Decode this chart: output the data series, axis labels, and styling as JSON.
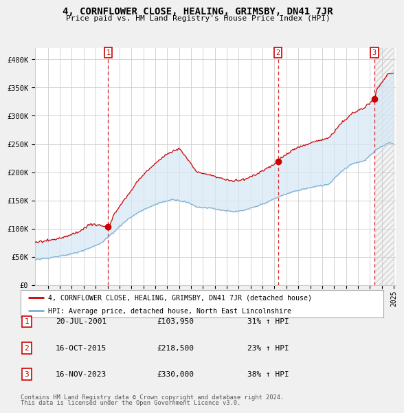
{
  "title": "4, CORNFLOWER CLOSE, HEALING, GRIMSBY, DN41 7JR",
  "subtitle": "Price paid vs. HM Land Registry's House Price Index (HPI)",
  "ylim": [
    0,
    420000
  ],
  "yticks": [
    0,
    50000,
    100000,
    150000,
    200000,
    250000,
    300000,
    350000,
    400000
  ],
  "ytick_labels": [
    "£0",
    "£50K",
    "£100K",
    "£150K",
    "£200K",
    "£250K",
    "£300K",
    "£350K",
    "£400K"
  ],
  "red_line_color": "#cc0000",
  "blue_line_color": "#7ab0d4",
  "fill_color": "#d6e8f5",
  "hatch_color": "#c8c8c8",
  "grid_color": "#cccccc",
  "background_color": "#f0f0f0",
  "plot_bg_color": "#ffffff",
  "sale_prices": [
    103950,
    218500,
    330000
  ],
  "sale_labels": [
    "1",
    "2",
    "3"
  ],
  "sale_pct": [
    "31% ↑ HPI",
    "23% ↑ HPI",
    "38% ↑ HPI"
  ],
  "sale_date_strs": [
    "20-JUL-2001",
    "16-OCT-2015",
    "16-NOV-2023"
  ],
  "legend_red": "4, CORNFLOWER CLOSE, HEALING, GRIMSBY, DN41 7JR (detached house)",
  "legend_blue": "HPI: Average price, detached house, North East Lincolnshire",
  "footer1": "Contains HM Land Registry data © Crown copyright and database right 2024.",
  "footer2": "This data is licensed under the Open Government Licence v3.0."
}
